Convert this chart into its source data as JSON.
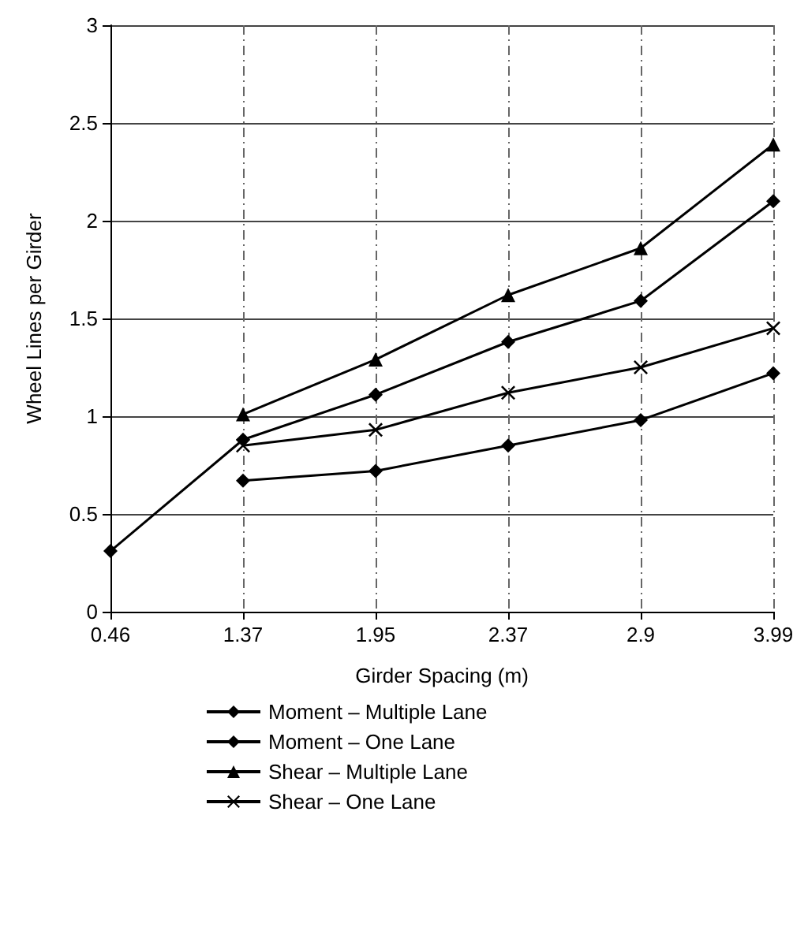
{
  "chart_data": {
    "type": "line",
    "xlabel": "Girder Spacing (m)",
    "ylabel": "Wheel Lines per Girder",
    "categories": [
      "0.46",
      "1.37",
      "1.95",
      "2.37",
      "2.9",
      "3.99"
    ],
    "series": [
      {
        "name": "Moment – Multiple Lane",
        "color": "#000000",
        "marker": "diamond",
        "values": [
          0.31,
          0.88,
          1.11,
          1.38,
          1.59,
          2.1
        ]
      },
      {
        "name": "Moment – One Lane",
        "color": "#000000",
        "marker": "diamond",
        "values": [
          null,
          0.67,
          0.72,
          0.85,
          0.98,
          1.22
        ]
      },
      {
        "name": "Shear – Multiple Lane",
        "color": "#000000",
        "marker": "triangle",
        "values": [
          null,
          1.01,
          1.29,
          1.62,
          1.86,
          2.39
        ]
      },
      {
        "name": "Shear – One Lane",
        "color": "#000000",
        "marker": "cross",
        "values": [
          null,
          0.85,
          0.93,
          1.12,
          1.25,
          1.45
        ]
      }
    ],
    "ylim": [
      0,
      3
    ],
    "yticks": [
      0,
      0.5,
      1,
      1.5,
      2,
      2.5,
      3
    ],
    "grid": true,
    "legend": "bottom",
    "line_style": "solid"
  }
}
